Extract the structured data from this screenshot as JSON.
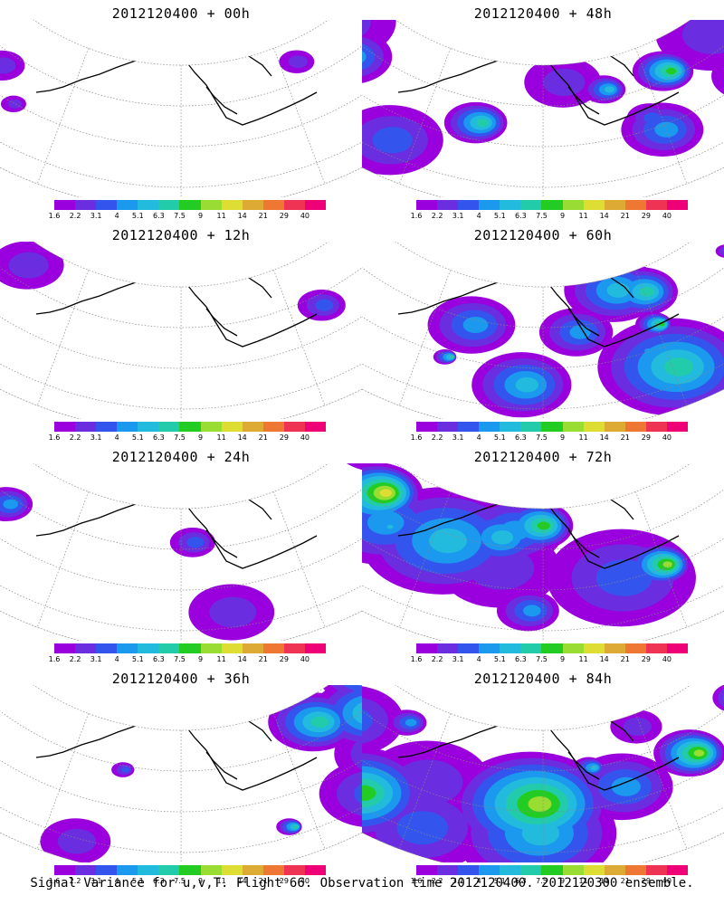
{
  "caption": "Signal Variance for u,v,T. Flight 66. Observation time 2012120400. 2012120300 ensemble.",
  "colorbar": {
    "labels": [
      "1.6",
      "2.2",
      "3.1",
      "4",
      "5.1",
      "6.3",
      "7.5",
      "9",
      "11",
      "14",
      "21",
      "29",
      "40"
    ],
    "colors": [
      "#9900dd",
      "#6a2ee0",
      "#3355ee",
      "#1a99ee",
      "#22bbdd",
      "#22ccaa",
      "#22cc22",
      "#99dd33",
      "#dddd33",
      "#ddaa33",
      "#ee7733",
      "#ee3355",
      "#ee0077"
    ]
  },
  "panels": [
    {
      "title": "2012120400 + 00h",
      "intensity": 0.15
    },
    {
      "title": "2012120400 + 48h",
      "intensity": 0.7
    },
    {
      "title": "2012120400 + 12h",
      "intensity": 0.3
    },
    {
      "title": "2012120400 + 60h",
      "intensity": 0.8
    },
    {
      "title": "2012120400 + 24h",
      "intensity": 0.45
    },
    {
      "title": "2012120400 + 72h",
      "intensity": 0.88
    },
    {
      "title": "2012120400 + 36h",
      "intensity": 0.55
    },
    {
      "title": "2012120400 + 84h",
      "intensity": 0.92
    }
  ]
}
